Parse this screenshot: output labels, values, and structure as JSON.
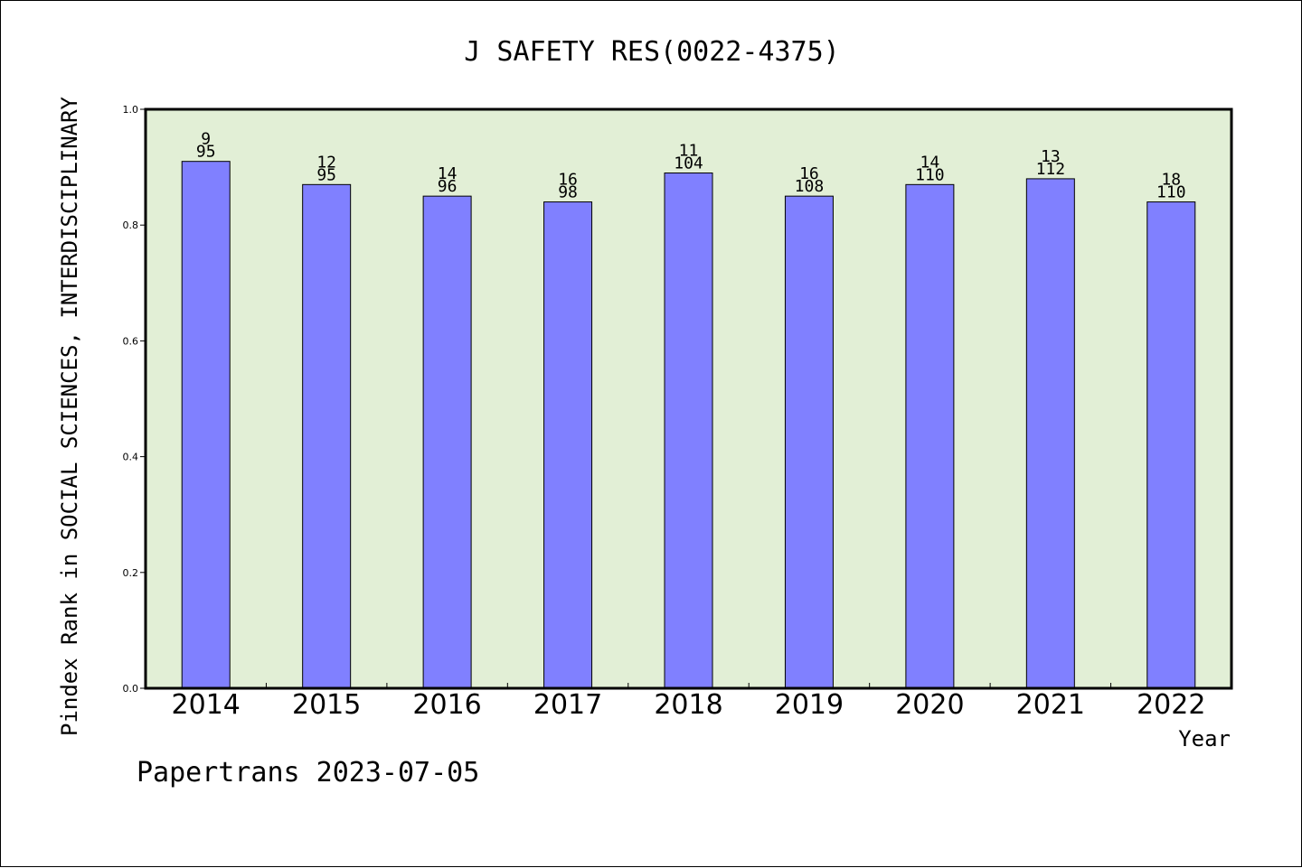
{
  "chart_data": {
    "type": "bar",
    "title": "J SAFETY RES(0022-4375)",
    "xlabel": "Year",
    "ylabel": "Pindex Rank in SOCIAL SCIENCES, INTERDISCIPLINARY",
    "categories": [
      "2014",
      "2015",
      "2016",
      "2017",
      "2018",
      "2019",
      "2020",
      "2021",
      "2022"
    ],
    "values": [
      0.91,
      0.87,
      0.85,
      0.84,
      0.89,
      0.85,
      0.87,
      0.88,
      0.84
    ],
    "bar_labels": [
      [
        "9",
        "95"
      ],
      [
        "12",
        "95"
      ],
      [
        "14",
        "96"
      ],
      [
        "16",
        "98"
      ],
      [
        "11",
        "104"
      ],
      [
        "16",
        "108"
      ],
      [
        "14",
        "110"
      ],
      [
        "13",
        "112"
      ],
      [
        "18",
        "110"
      ]
    ],
    "ylim": [
      0,
      1.0
    ],
    "yticks": [
      "0.0",
      "0.2",
      "0.4",
      "0.6",
      "0.8",
      "1.0"
    ],
    "grid": false,
    "bar_color": "#8080ff",
    "plot_background": "#e2efd6"
  },
  "footer": {
    "credit": "Papertrans 2023-07-05"
  }
}
